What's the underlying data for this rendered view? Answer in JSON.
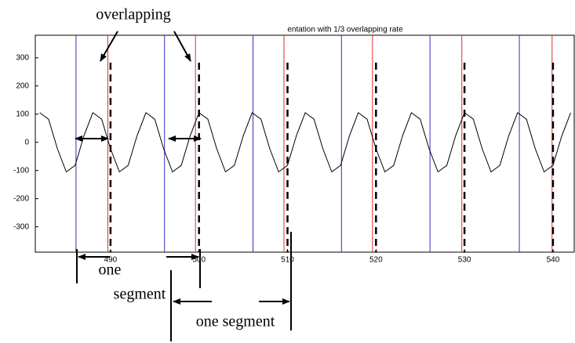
{
  "chart_data": {
    "type": "line",
    "title": "entation with 1/3 overlapping rate",
    "x": [
      482,
      483,
      484,
      485,
      486,
      487,
      488,
      489,
      490,
      491,
      492,
      493,
      494,
      495,
      496,
      497,
      498,
      499,
      500,
      501,
      502,
      503,
      504,
      505,
      506,
      507,
      508,
      509,
      510,
      511,
      512,
      513,
      514,
      515,
      516,
      517,
      518,
      519,
      520,
      521,
      522,
      523,
      524,
      525,
      526,
      527,
      528,
      529,
      530,
      531,
      532,
      533,
      534,
      535,
      536,
      537,
      538,
      539,
      540,
      541,
      542
    ],
    "values": [
      105,
      82,
      -23,
      -105,
      -82,
      23,
      105,
      82,
      -23,
      -105,
      -82,
      23,
      105,
      82,
      -23,
      -105,
      -82,
      23,
      105,
      82,
      -23,
      -105,
      -82,
      23,
      105,
      82,
      -23,
      -105,
      -82,
      23,
      105,
      82,
      -23,
      -105,
      -82,
      23,
      105,
      82,
      -23,
      -105,
      -82,
      23,
      105,
      82,
      -23,
      -105,
      -82,
      23,
      105,
      82,
      -23,
      -105,
      -82,
      23,
      105,
      82,
      -23,
      -105,
      -82,
      23,
      105
    ],
    "color": "#000000",
    "blue_lines": [
      486.1,
      496.1,
      506.1,
      516.1,
      526.1,
      536.2
    ],
    "blue_color": "#3030c0",
    "red_lines": [
      489.7,
      499.6,
      509.6,
      519.6,
      529.7,
      539.9
    ],
    "red_color": "#e03030",
    "boundary_lines": [
      490,
      500,
      510,
      520,
      530,
      540
    ],
    "xlim": [
      481.5,
      542.4
    ],
    "ylim": [
      -390,
      380
    ],
    "xticks": [
      490,
      500,
      510,
      520,
      530,
      540
    ],
    "yticks": [
      300,
      200,
      100,
      0,
      -100,
      -200,
      -300
    ],
    "annotations": [
      "overlapping",
      "one",
      "segment",
      "one segment"
    ]
  }
}
